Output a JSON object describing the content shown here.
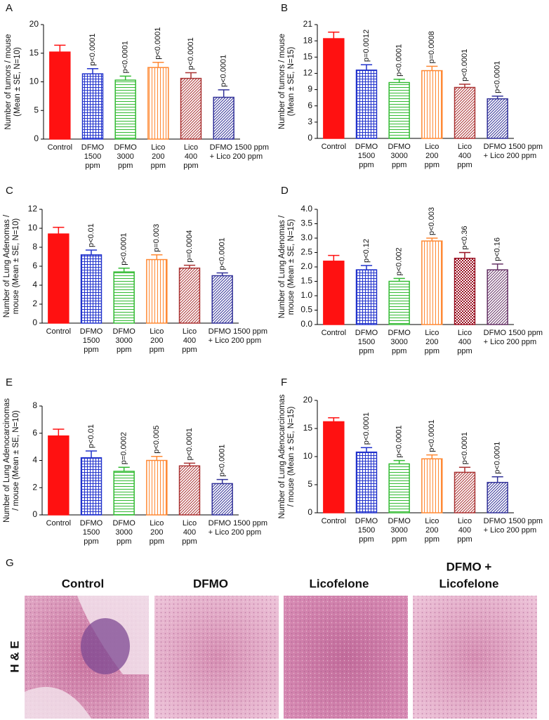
{
  "chart_data": [
    {
      "type": "bar",
      "panel": "A",
      "ylabel": [
        "Number of tumors / mouse",
        "(Mean ± SE, N=10)"
      ],
      "categories": [
        [
          "Control"
        ],
        [
          "DFMO",
          "1500",
          "ppm"
        ],
        [
          "DFMO",
          "3000",
          "ppm"
        ],
        [
          "Lico",
          "200",
          "ppm"
        ],
        [
          "Lico",
          "400",
          "ppm"
        ],
        [
          "DFMO 1500 ppm",
          "+ Lico 200 ppm"
        ]
      ],
      "values": [
        15.2,
        11.4,
        10.3,
        12.5,
        10.6,
        7.3
      ],
      "errors": [
        1.2,
        0.9,
        0.7,
        0.9,
        1.0,
        1.3
      ],
      "annotations": [
        "p<0.0001",
        "p<0.0001",
        "p<0.0001",
        "p<0.0001",
        "p<0.0001"
      ],
      "colors": [
        "#ff1111",
        "#2233cc",
        "#33bb33",
        "#ff8833",
        "#aa3333",
        "#333399"
      ],
      "patterns": [
        "solid",
        "grid",
        "hlines",
        "vlines",
        "diag",
        "diag"
      ],
      "ylim": [
        0,
        20
      ],
      "yticks": [
        0,
        5,
        10,
        15,
        20
      ]
    },
    {
      "type": "bar",
      "panel": "B",
      "ylabel": [
        "Number of tumors / mouse",
        "(Mean ± SE, N=15)"
      ],
      "categories": [
        [
          "Control"
        ],
        [
          "DFMO",
          "1500",
          "ppm"
        ],
        [
          "DFMO",
          "3000",
          "ppm"
        ],
        [
          "Lico",
          "200",
          "ppm"
        ],
        [
          "Lico",
          "400",
          "ppm"
        ],
        [
          "DFMO 1500 ppm",
          "+ Lico 200 ppm"
        ]
      ],
      "values": [
        18.4,
        12.6,
        10.3,
        12.5,
        9.4,
        7.3
      ],
      "errors": [
        1.2,
        1.0,
        0.6,
        0.8,
        0.6,
        0.5
      ],
      "annotations": [
        "p=0.0012",
        "p<0.0001",
        "p=0.0008",
        "p<0.0001",
        "p<0.0001"
      ],
      "colors": [
        "#ff1111",
        "#2233cc",
        "#33bb33",
        "#ff8833",
        "#aa3333",
        "#333399"
      ],
      "patterns": [
        "solid",
        "grid",
        "hlines",
        "vlines",
        "diag",
        "diag"
      ],
      "ylim": [
        0,
        21
      ],
      "yticks": [
        0,
        3,
        6,
        9,
        12,
        15,
        18,
        21
      ]
    },
    {
      "type": "bar",
      "panel": "C",
      "ylabel": [
        "Number of Lung Adenomas /",
        "mouse (Mean ± SE, N=10)"
      ],
      "categories": [
        [
          "Control"
        ],
        [
          "DFMO",
          "1500",
          "ppm"
        ],
        [
          "DFMO",
          "3000",
          "ppm"
        ],
        [
          "Lico",
          "200",
          "ppm"
        ],
        [
          "Lico",
          "400",
          "ppm"
        ],
        [
          "DFMO 1500 ppm",
          "+ Lico 200 ppm"
        ]
      ],
      "values": [
        9.4,
        7.2,
        5.4,
        6.7,
        5.8,
        5.0
      ],
      "errors": [
        0.7,
        0.5,
        0.4,
        0.5,
        0.3,
        0.3
      ],
      "annotations": [
        "p<0.01",
        "p<0.0001",
        "p=0.003",
        "p=0.0004",
        "p<0.0001"
      ],
      "colors": [
        "#ff1111",
        "#2233cc",
        "#33bb33",
        "#ff8833",
        "#aa3333",
        "#333399"
      ],
      "patterns": [
        "solid",
        "grid",
        "hlines",
        "vlines",
        "diag",
        "diag"
      ],
      "ylim": [
        0,
        12
      ],
      "yticks": [
        0,
        2,
        4,
        6,
        8,
        10,
        12
      ]
    },
    {
      "type": "bar",
      "panel": "D",
      "ylabel": [
        "Number of Lung Adenomas /",
        "mouse (Mean ± SE, N=15)"
      ],
      "categories": [
        [
          "Control"
        ],
        [
          "DFMO",
          "1500",
          "ppm"
        ],
        [
          "DFMO",
          "3000",
          "ppm"
        ],
        [
          "Lico",
          "200",
          "ppm"
        ],
        [
          "Lico",
          "400",
          "ppm"
        ],
        [
          "DFMO 1500 ppm",
          "+ Lico 200 ppm"
        ]
      ],
      "values": [
        2.2,
        1.9,
        1.5,
        2.9,
        2.3,
        1.9
      ],
      "errors": [
        0.2,
        0.15,
        0.1,
        0.1,
        0.2,
        0.2
      ],
      "annotations": [
        "p<0.12",
        "p<0.002",
        "p<0.003",
        "p<0.36",
        "p<0.16"
      ],
      "colors": [
        "#ff1111",
        "#2233cc",
        "#33bb33",
        "#ff8833",
        "#991122",
        "#663366"
      ],
      "patterns": [
        "solid",
        "grid",
        "hlines",
        "vlines",
        "checker",
        "diag"
      ],
      "ylim": [
        0,
        4
      ],
      "yticks": [
        {
          "value": 0,
          "label": "0.0"
        },
        0.5,
        {
          "value": 1,
          "label": "1.0"
        },
        1.5,
        {
          "value": 2,
          "label": "2.0"
        },
        2.5,
        {
          "value": 3,
          "label": "3.0"
        },
        3.5,
        {
          "value": 4,
          "label": "4.0"
        }
      ]
    },
    {
      "type": "bar",
      "panel": "E",
      "ylabel": [
        "Number of Lung Adenocarcinomas",
        "/ mouse (Mean ± SE, N=10)"
      ],
      "categories": [
        [
          "Control"
        ],
        [
          "DFMO",
          "1500",
          "ppm"
        ],
        [
          "DFMO",
          "3000",
          "ppm"
        ],
        [
          "Lico",
          "200",
          "ppm"
        ],
        [
          "Lico",
          "400",
          "ppm"
        ],
        [
          "DFMO 1500 ppm",
          "+ Lico 200 ppm"
        ]
      ],
      "values": [
        5.8,
        4.2,
        3.2,
        4.0,
        3.6,
        2.3
      ],
      "errors": [
        0.5,
        0.5,
        0.3,
        0.3,
        0.2,
        0.3
      ],
      "annotations": [
        "p<0.01",
        "p=0.0002",
        "p<0.005",
        "p<0.0001",
        "p<0.0001"
      ],
      "colors": [
        "#ff1111",
        "#2233cc",
        "#33bb33",
        "#ff8833",
        "#aa3333",
        "#333399"
      ],
      "patterns": [
        "solid",
        "grid",
        "hlines",
        "vlines",
        "diag",
        "diag"
      ],
      "ylim": [
        0,
        8
      ],
      "yticks": [
        0,
        2,
        4,
        6,
        8
      ]
    },
    {
      "type": "bar",
      "panel": "F",
      "ylabel": [
        "Number of Lung Adenocarcinomas",
        "/ mouse (Mean ± SE, N=15)"
      ],
      "categories": [
        [
          "Control"
        ],
        [
          "DFMO",
          "1500",
          "ppm"
        ],
        [
          "DFMO",
          "3000",
          "ppm"
        ],
        [
          "Lico",
          "200",
          "ppm"
        ],
        [
          "Lico",
          "400",
          "ppm"
        ],
        [
          "DFMO 1500 ppm",
          "+ Lico 200 ppm"
        ]
      ],
      "values": [
        16.2,
        10.8,
        8.7,
        9.6,
        7.2,
        5.4
      ],
      "errors": [
        0.7,
        0.8,
        0.6,
        0.7,
        0.9,
        1.0
      ],
      "annotations": [
        "p<0.0001",
        "p<0.0001",
        "p<0.0001",
        "p<0.0001",
        "p<0.0001"
      ],
      "colors": [
        "#ff1111",
        "#2233cc",
        "#33bb33",
        "#ff8833",
        "#aa3333",
        "#333399"
      ],
      "patterns": [
        "solid",
        "grid",
        "hlines",
        "vlines",
        "diag",
        "diag"
      ],
      "ylim": [
        0,
        20
      ],
      "yticks": [
        0,
        5,
        10,
        15,
        20
      ]
    }
  ],
  "panel_g": {
    "panel": "G",
    "stain": "H & E",
    "titles": [
      [
        "Control"
      ],
      [
        "DFMO"
      ],
      [
        "Licofelone"
      ],
      [
        "DFMO +",
        "Licofelone"
      ]
    ]
  }
}
